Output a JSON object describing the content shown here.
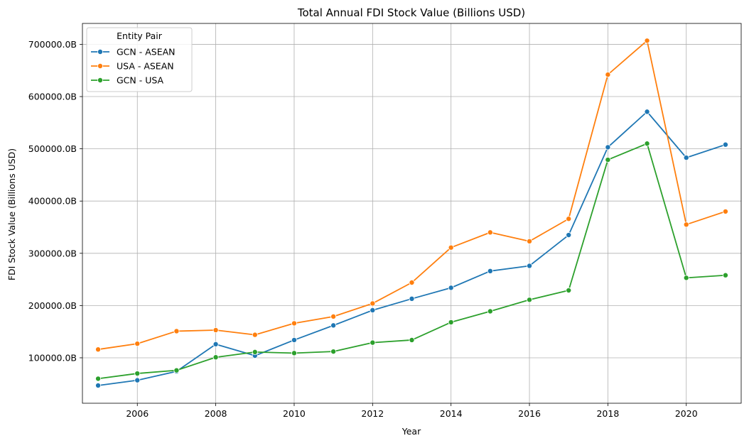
{
  "chart_data": {
    "type": "line",
    "title": "Total Annual FDI Stock Value (Billions USD)",
    "xlabel": "Year",
    "ylabel": "FDI Stock Value (Billions USD)",
    "xlim": [
      2004.6,
      2021.4
    ],
    "ylim": [
      13000,
      740000
    ],
    "x_ticks": [
      2006,
      2008,
      2010,
      2012,
      2014,
      2016,
      2018,
      2020
    ],
    "x_tick_labels": [
      "2006",
      "2008",
      "2010",
      "2012",
      "2014",
      "2016",
      "2018",
      "2020"
    ],
    "y_ticks": [
      100000,
      200000,
      300000,
      400000,
      500000,
      600000,
      700000
    ],
    "y_tick_labels": [
      "100000.0B",
      "200000.0B",
      "300000.0B",
      "400000.0B",
      "500000.0B",
      "600000.0B",
      "700000.0B"
    ],
    "grid": true,
    "legend": {
      "title": "Entity Pair",
      "placement": "upper-left"
    },
    "x": [
      2005,
      2006,
      2007,
      2008,
      2009,
      2010,
      2011,
      2012,
      2013,
      2014,
      2015,
      2016,
      2017,
      2018,
      2019,
      2020,
      2021
    ],
    "series": [
      {
        "name": "GCN - ASEAN",
        "color": "#1f77b4",
        "values": [
          47000,
          57000,
          74000,
          126000,
          104000,
          134000,
          162000,
          191000,
          213000,
          234000,
          266000,
          276000,
          335000,
          503000,
          571000,
          483000,
          508000
        ]
      },
      {
        "name": "USA - ASEAN",
        "color": "#ff7f0e",
        "values": [
          116000,
          127000,
          151000,
          153000,
          144000,
          166000,
          179000,
          204000,
          244000,
          311000,
          340000,
          323000,
          366000,
          642000,
          707000,
          355000,
          380000
        ]
      },
      {
        "name": "GCN - USA",
        "color": "#2ca02c",
        "values": [
          60000,
          70000,
          76000,
          101000,
          111000,
          109000,
          112000,
          129000,
          134000,
          168000,
          189000,
          211000,
          229000,
          479000,
          510000,
          253000,
          258000
        ]
      }
    ]
  }
}
